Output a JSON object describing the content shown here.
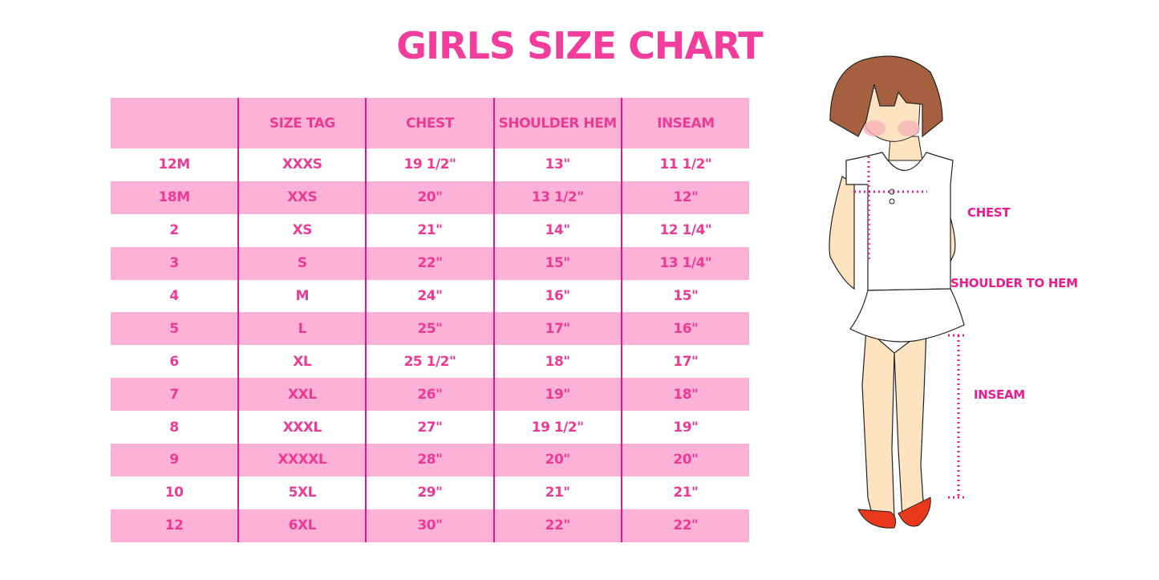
{
  "title": "GIRLS SIZE CHART",
  "table": {
    "headers": [
      "",
      "SIZE TAG",
      "CHEST",
      "SHOULDER HEM",
      "INSEAM"
    ],
    "rows": [
      [
        "12M",
        "XXXS",
        "19 1/2\"",
        "13\"",
        "11 1/2\""
      ],
      [
        "18M",
        "XXS",
        "20\"",
        "13 1/2\"",
        "12\""
      ],
      [
        "2",
        "XS",
        "21\"",
        "14\"",
        "12 1/4\""
      ],
      [
        "3",
        "S",
        "22\"",
        "15\"",
        "13 1/4\""
      ],
      [
        "4",
        "M",
        "24\"",
        "16\"",
        "15\""
      ],
      [
        "5",
        "L",
        "25\"",
        "17\"",
        "16\""
      ],
      [
        "6",
        "XL",
        "25 1/2\"",
        "18\"",
        "17\""
      ],
      [
        "7",
        "XXL",
        "26\"",
        "19\"",
        "18\""
      ],
      [
        "8",
        "XXXL",
        "27\"",
        "19 1/2\"",
        "19\""
      ],
      [
        "9",
        "XXXXL",
        "28\"",
        "20\"",
        "20\""
      ],
      [
        "10",
        "5XL",
        "29\"",
        "21\"",
        "21\""
      ],
      [
        "12",
        "6XL",
        "30\"",
        "22\"",
        "22\""
      ]
    ]
  },
  "figure": {
    "labels": {
      "chest": "CHEST",
      "shoulder": "SHOULDER TO HEM",
      "inseam": "INSEAM"
    }
  },
  "colors": {
    "accent": "#f23d9c",
    "row_pink": "#fbb2d6",
    "divider": "#e0158c"
  }
}
